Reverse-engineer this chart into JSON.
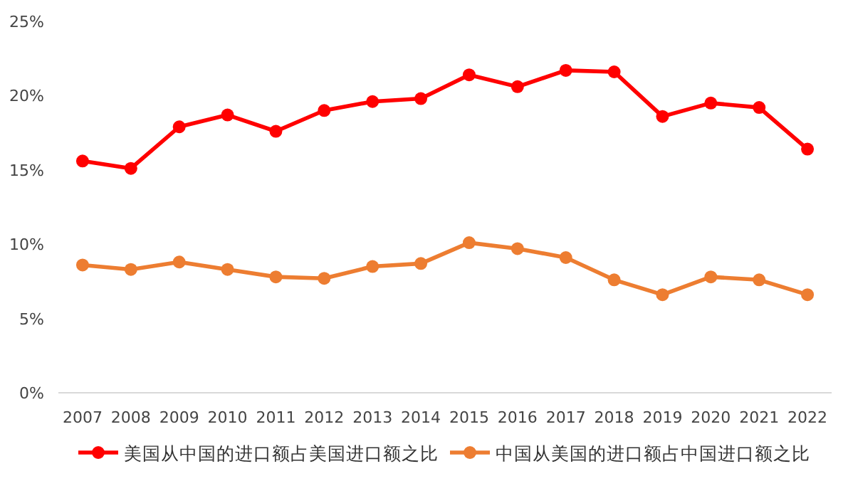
{
  "chart_data": {
    "type": "line",
    "categories": [
      "2007",
      "2008",
      "2009",
      "2010",
      "2011",
      "2012",
      "2013",
      "2014",
      "2015",
      "2016",
      "2017",
      "2018",
      "2019",
      "2020",
      "2021",
      "2022"
    ],
    "series": [
      {
        "name": "美国从中国的进口额占美国进口额之比",
        "color": "#ff0000",
        "values": [
          15.6,
          15.1,
          17.9,
          18.7,
          17.6,
          19.0,
          19.6,
          19.8,
          21.4,
          20.6,
          21.7,
          21.6,
          18.6,
          19.5,
          19.2,
          16.4
        ]
      },
      {
        "name": "中国从美国的进口额占中国进口额之比",
        "color": "#ed7d31",
        "values": [
          8.6,
          8.3,
          8.8,
          8.3,
          7.8,
          7.7,
          8.5,
          8.7,
          10.1,
          9.7,
          9.1,
          7.6,
          6.6,
          7.8,
          7.6,
          6.6
        ]
      }
    ],
    "ylim": [
      0,
      25
    ],
    "yticks": [
      {
        "value": 0,
        "label": "0%"
      },
      {
        "value": 5,
        "label": "5%"
      },
      {
        "value": 10,
        "label": "10%"
      },
      {
        "value": 15,
        "label": "15%"
      },
      {
        "value": 20,
        "label": "20%"
      },
      {
        "value": 25,
        "label": "25%"
      }
    ],
    "legend": "bottom",
    "marker": "circle",
    "line_style": "solid"
  }
}
